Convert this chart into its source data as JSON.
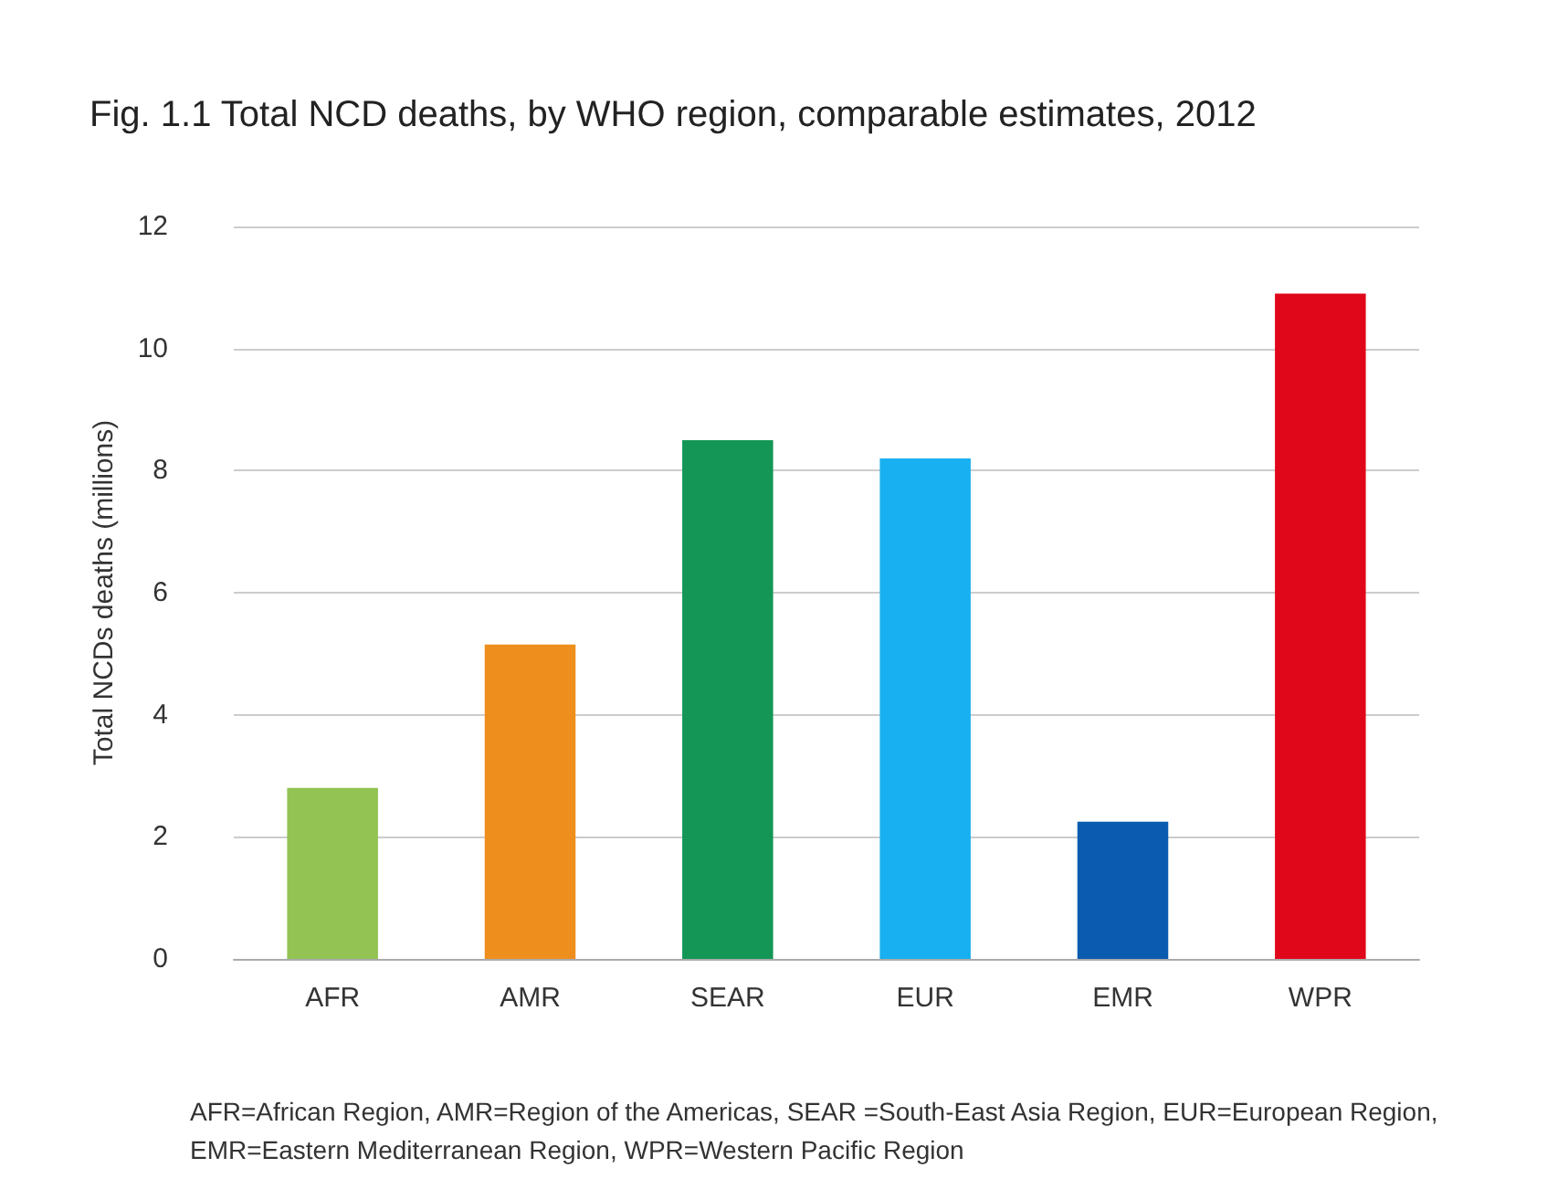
{
  "chart_data": {
    "type": "bar",
    "title": "Fig. 1.1 Total NCD deaths, by WHO region, comparable estimates, 2012",
    "ylabel": "Total NCDs deaths (millions)",
    "categories": [
      "AFR",
      "AMR",
      "SEAR",
      "EUR",
      "EMR",
      "WPR"
    ],
    "values": [
      2.8,
      5.15,
      8.5,
      8.2,
      2.25,
      10.9
    ],
    "colors": [
      "#92c353",
      "#ee8f1d",
      "#149656",
      "#18b0f0",
      "#0b5cb0",
      "#e0071a"
    ],
    "ylim": [
      0,
      12
    ],
    "yticks": [
      0,
      2,
      4,
      6,
      8,
      10,
      12
    ],
    "grid": "y",
    "annotations": [
      "AFR=African Region, AMR=Region of the Americas, SEAR =South-East Asia Region, EUR=European Region,\nEMR=Eastern Mediterranean Region, WPR=Western Pacific Region"
    ]
  }
}
